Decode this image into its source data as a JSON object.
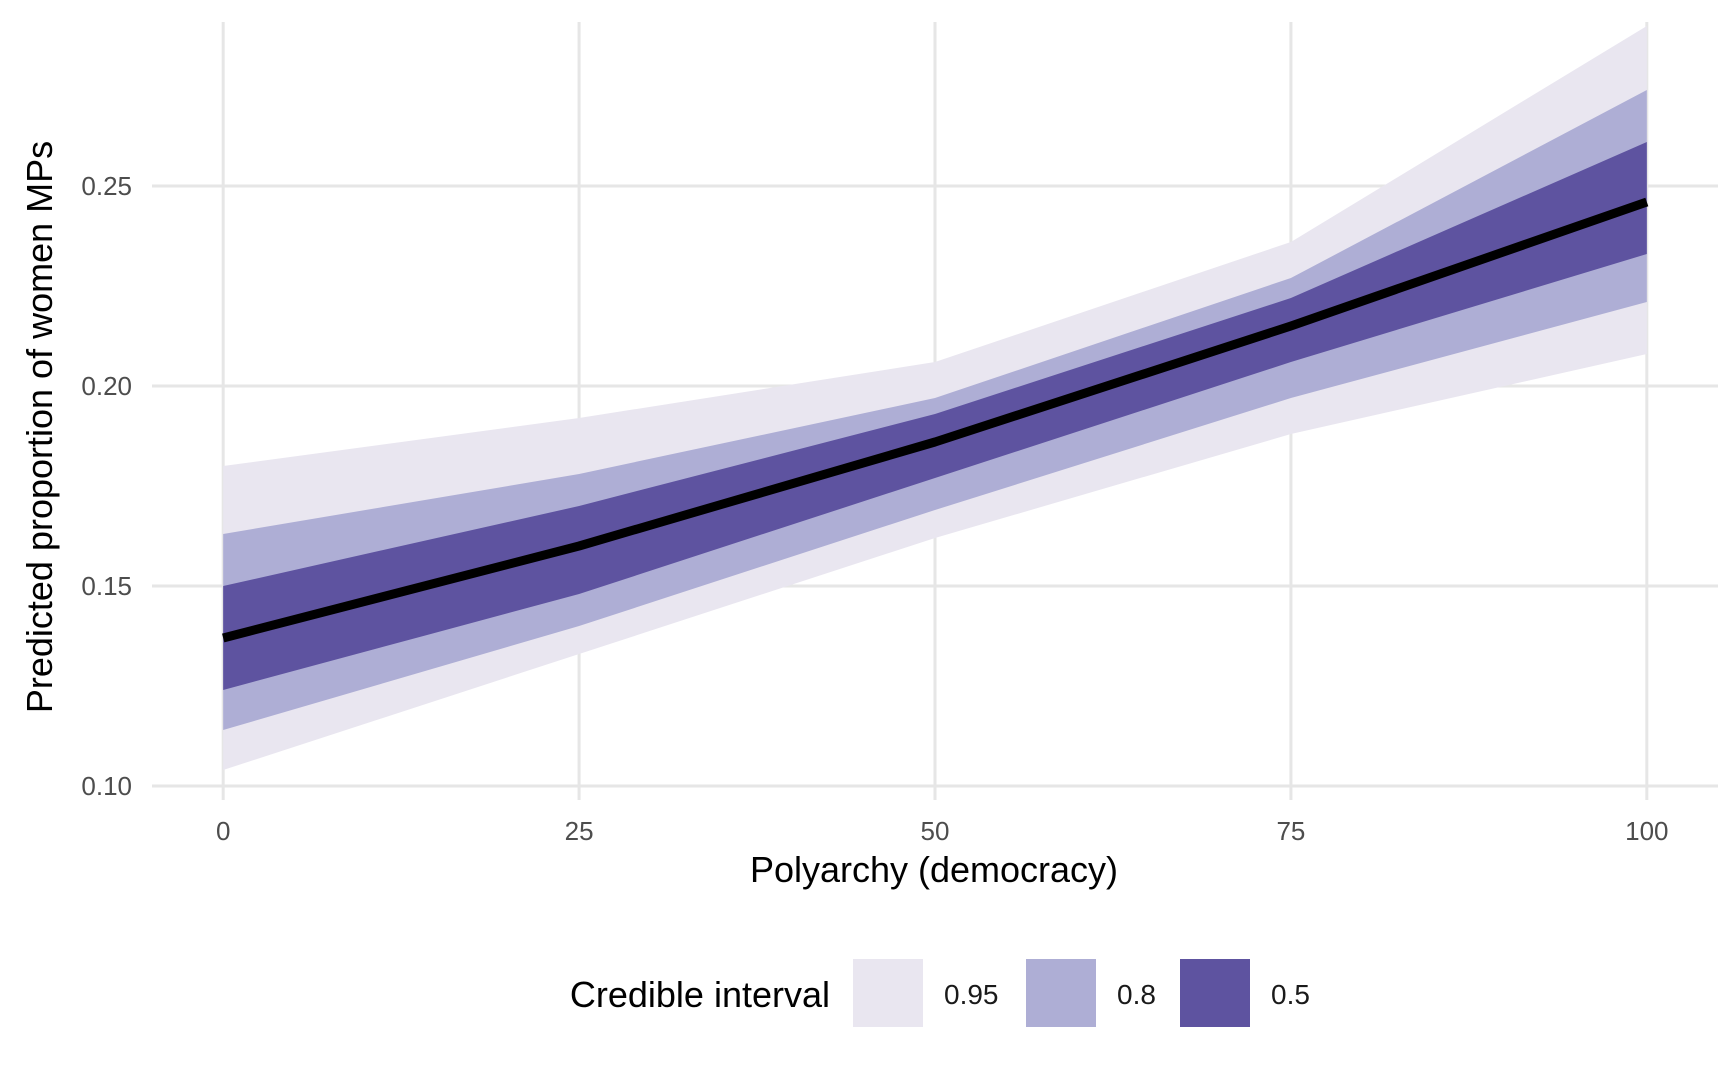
{
  "chart_data": {
    "type": "area",
    "title": "",
    "xlabel": "Polyarchy (democracy)",
    "ylabel": "Predicted proportion of women MPs",
    "xlim": [
      -5,
      105
    ],
    "ylim": [
      0.0965,
      0.291
    ],
    "grid": true,
    "x_ticks": [
      0,
      25,
      50,
      75,
      100
    ],
    "x_tick_labels": [
      "0",
      "25",
      "50",
      "75",
      "100"
    ],
    "y_ticks": [
      0.1,
      0.15,
      0.2,
      0.25
    ],
    "y_tick_labels": [
      "0.10",
      "0.15",
      "0.20",
      "0.25"
    ],
    "x": [
      0,
      25,
      50,
      75,
      100
    ],
    "median": [
      0.137,
      0.16,
      0.186,
      0.215,
      0.246
    ],
    "series": [
      {
        "name": "0.95",
        "lower": [
          0.104,
          0.133,
          0.162,
          0.188,
          0.208
        ],
        "upper": [
          0.18,
          0.192,
          0.206,
          0.236,
          0.29
        ],
        "color": "#e9e6f0"
      },
      {
        "name": "0.8",
        "lower": [
          0.114,
          0.14,
          0.169,
          0.197,
          0.221
        ],
        "upper": [
          0.163,
          0.178,
          0.197,
          0.227,
          0.274
        ],
        "color": "#aeaed5"
      },
      {
        "name": "0.5",
        "lower": [
          0.124,
          0.148,
          0.177,
          0.206,
          0.233
        ],
        "upper": [
          0.15,
          0.17,
          0.193,
          0.222,
          0.261
        ],
        "color": "#5e53a0"
      }
    ],
    "median_color": "#000000",
    "legend": {
      "title": "Credible interval",
      "position": "bottom",
      "entries": [
        {
          "label": "0.95",
          "color": "#e9e6f0"
        },
        {
          "label": "0.8",
          "color": "#aeaed5"
        },
        {
          "label": "0.5",
          "color": "#5e53a0"
        }
      ]
    }
  }
}
